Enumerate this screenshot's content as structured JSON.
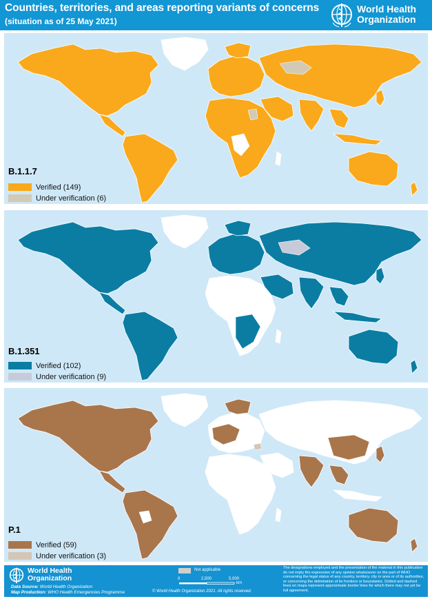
{
  "header": {
    "title": "Countries, territories, and areas reporting variants of concerns",
    "subtitle": "(situation as of 25 May 2021)",
    "org_name_line1": "World Health",
    "org_name_line2": "Organization"
  },
  "colors": {
    "header_bg": "#1296d4",
    "ocean": "#cfe8f7",
    "no_report": "#ffffff",
    "b117_verified": "#f9a91b",
    "b1351_verified": "#0b7da3",
    "p1_verified": "#a9754b",
    "under_verification": "#d2cab4",
    "not_applicable": "#cfcfcf"
  },
  "panels": [
    {
      "variant": "B.1.1.7",
      "legend": [
        {
          "label": "Verified (149)",
          "color": "#f9a91b"
        },
        {
          "label": "Under verification (6)",
          "color": "#d2cab4"
        }
      ]
    },
    {
      "variant": "B.1.351",
      "legend": [
        {
          "label": "Verified (102)",
          "color": "#0b7da3"
        },
        {
          "label": "Under verification (9)",
          "color": "#c7cbd9"
        }
      ]
    },
    {
      "variant": "P.1",
      "legend": [
        {
          "label": "Verified (59)",
          "color": "#a9754b"
        },
        {
          "label": "Under verification (3)",
          "color": "#d4c6b6"
        }
      ]
    }
  ],
  "footer": {
    "org_line1": "World Health",
    "org_line2": "Organization",
    "data_source_label": "Data Source:",
    "data_source": "World Health Organization",
    "map_production_label": "Map Production:",
    "map_production": "WHO Health Emergencies Programme",
    "not_applicable": "Not applicable",
    "scale_0": "0",
    "scale_1": "2,500",
    "scale_2": "5,000",
    "scale_unit": "km",
    "copyright": "© World Health Organization 2021. All rights reserved.",
    "disclaimer": "The designations employed and the presentation of the material in this publication do not imply the expression of any opinion whatsoever on the part of WHO concerning the legal status of any country, territory, city or area or of its authorities, or concerning the delimitation of its frontiers or boundaries. Dotted and dashed lines on maps represent approximate border lines for which there may not yet be full agreement."
  }
}
